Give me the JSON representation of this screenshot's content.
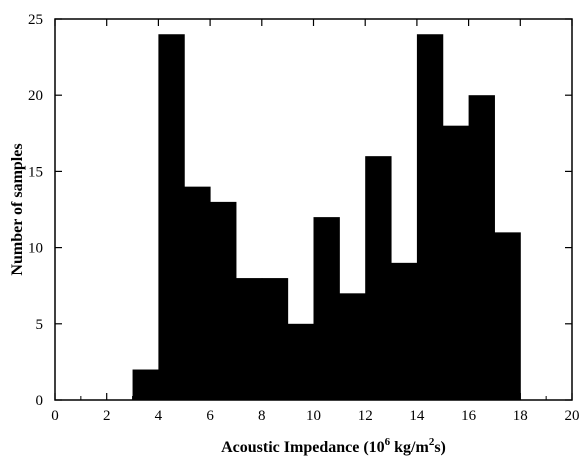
{
  "chart_data": {
    "type": "bar",
    "title": "",
    "xlabel": {
      "parts": [
        "Acoustic Impedance  (10",
        "6",
        " kg/m",
        "2",
        "s)"
      ]
    },
    "ylabel": "Number  of  samples",
    "xlim": [
      0,
      20
    ],
    "ylim": [
      0,
      25
    ],
    "xticks": [
      0,
      2,
      4,
      6,
      8,
      10,
      12,
      14,
      16,
      18,
      20
    ],
    "yticks": [
      0,
      5,
      10,
      15,
      20,
      25
    ],
    "bin_width": 1,
    "bins": [
      {
        "x0": 3,
        "x1": 4,
        "value": 2
      },
      {
        "x0": 4,
        "x1": 5,
        "value": 24
      },
      {
        "x0": 5,
        "x1": 6,
        "value": 14
      },
      {
        "x0": 6,
        "x1": 7,
        "value": 13
      },
      {
        "x0": 7,
        "x1": 8,
        "value": 8
      },
      {
        "x0": 8,
        "x1": 9,
        "value": 8
      },
      {
        "x0": 9,
        "x1": 10,
        "value": 5
      },
      {
        "x0": 10,
        "x1": 11,
        "value": 12
      },
      {
        "x0": 11,
        "x1": 12,
        "value": 7
      },
      {
        "x0": 12,
        "x1": 13,
        "value": 16
      },
      {
        "x0": 13,
        "x1": 14,
        "value": 9
      },
      {
        "x0": 14,
        "x1": 15,
        "value": 24
      },
      {
        "x0": 15,
        "x1": 16,
        "value": 18
      },
      {
        "x0": 16,
        "x1": 17,
        "value": 20
      },
      {
        "x0": 17,
        "x1": 18,
        "value": 11
      }
    ],
    "bar_color": "#000000",
    "grid": false,
    "legend": "none"
  }
}
